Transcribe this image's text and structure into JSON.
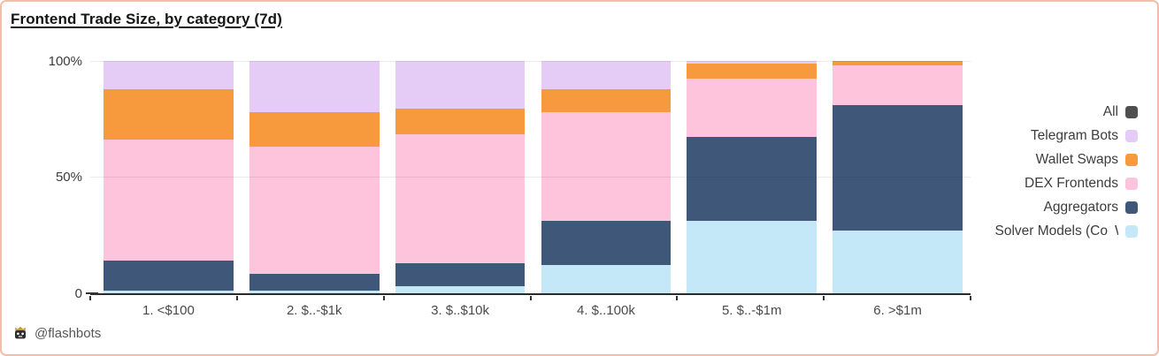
{
  "card": {
    "title": "Frontend Trade Size, by category (7d)",
    "watermark": "@flashbots",
    "border_color": "#f4bcab",
    "background": "#ffffff"
  },
  "chart_data": {
    "type": "bar",
    "stacked": true,
    "value_format": "percent",
    "title": "Frontend Trade Size, by category (7d)",
    "categories": [
      "1. <$100",
      "2. $..-$1k",
      "3. $..$10k",
      "4. $..100k",
      "5. $..-$1m",
      "6. >$1m"
    ],
    "series": [
      {
        "name": "Solver Models (CoW",
        "color": "#c5e8f8",
        "values": [
          1,
          1,
          3,
          12,
          31,
          27
        ]
      },
      {
        "name": "Aggregators",
        "color": "#3f587a",
        "values": [
          13,
          7.5,
          10,
          19,
          36.5,
          54
        ]
      },
      {
        "name": "DEX Frontends",
        "color": "#fdc4dc",
        "values": [
          52,
          54.5,
          55.5,
          47,
          25,
          17
        ]
      },
      {
        "name": "Wallet Swaps",
        "color": "#f7993d",
        "values": [
          22,
          15,
          11,
          10,
          6.5,
          2
        ]
      },
      {
        "name": "Telegram Bots",
        "color": "#e4ccf7",
        "values": [
          12,
          22,
          20.5,
          12,
          1,
          0
        ]
      }
    ],
    "legend": [
      {
        "label": "All",
        "color": "#4f4f4f",
        "clipped_char": ""
      },
      {
        "label": "Telegram Bots",
        "color": "#e4ccf7",
        "clipped_char": ""
      },
      {
        "label": "Wallet Swaps",
        "color": "#f7993d",
        "clipped_char": ""
      },
      {
        "label": "DEX Frontends",
        "color": "#fdc4dc",
        "clipped_char": ""
      },
      {
        "label": "Aggregators",
        "color": "#3f587a",
        "clipped_char": ""
      },
      {
        "label": "Solver Models (Co",
        "color": "#c5e8f8",
        "clipped_char": "W"
      }
    ],
    "yticks": [
      {
        "label": "100%",
        "value": 100
      },
      {
        "label": "50%",
        "value": 50
      },
      {
        "label": "0",
        "value": 0
      }
    ],
    "ylim": [
      0,
      100
    ],
    "grid": "horizontal lines at 50 and 100",
    "legend_position": "right"
  }
}
